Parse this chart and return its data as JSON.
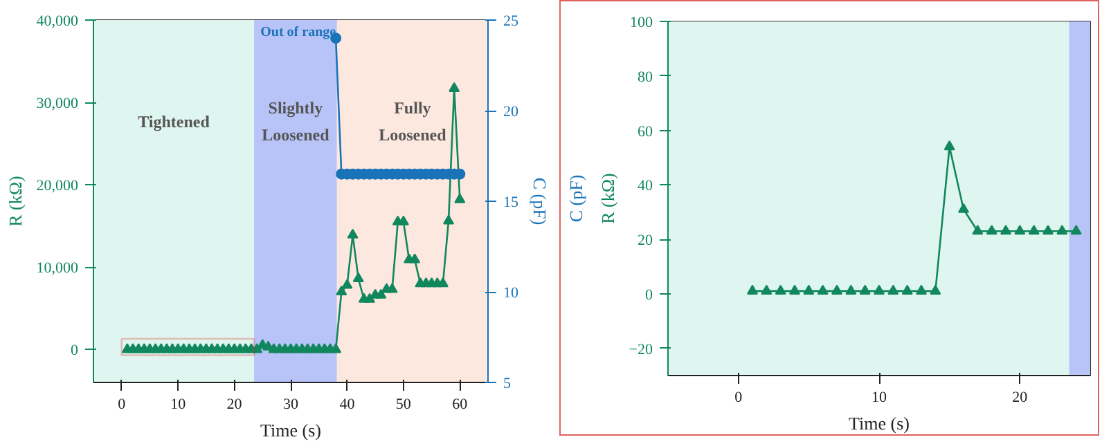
{
  "chart_data": [
    {
      "type": "line",
      "xlabel": "Time (s)",
      "ylabel": "R (kΩ)",
      "y2label": "C (pF)",
      "xlim": [
        -5,
        65
      ],
      "ylim": [
        -4000,
        40000
      ],
      "y2lim": [
        5,
        25
      ],
      "xticks": [
        0,
        10,
        20,
        30,
        40,
        50,
        60
      ],
      "yticks": [
        0,
        {
          "value": 10000,
          "label": "10,000"
        },
        {
          "value": 20000,
          "label": "20,000"
        },
        {
          "value": 30000,
          "label": "30,000"
        },
        {
          "value": 40000,
          "label": "40,000"
        }
      ],
      "y2ticks": [
        5,
        10,
        15,
        20,
        25
      ],
      "bands": [
        {
          "axis": "x",
          "from": -5,
          "to": 23.5,
          "label": "Tightened",
          "color": "#dff5ef"
        },
        {
          "axis": "x",
          "from": 23.5,
          "to": 38.2,
          "label": "Slightly Loosened",
          "color": "#b8c4f8"
        },
        {
          "axis": "x",
          "from": 38.2,
          "to": 65,
          "label": "Fully Loosened",
          "color": "#fde8e0"
        }
      ],
      "annotations": [
        {
          "text": "Out of range",
          "x": 38,
          "y": 38500
        }
      ],
      "grid": false,
      "series": [
        {
          "color": "#11875d",
          "marker": "triangle",
          "x": [
            1,
            2,
            3,
            4,
            5,
            6,
            7,
            8,
            9,
            10,
            11,
            12,
            13,
            14,
            15,
            16,
            17,
            18,
            19,
            20,
            21,
            22,
            23,
            24,
            25,
            26,
            27,
            28,
            29,
            30,
            31,
            32,
            33,
            34,
            35,
            36,
            37,
            38,
            39,
            40,
            41,
            42,
            43,
            44,
            45,
            46,
            47,
            48,
            49,
            50,
            51,
            52,
            53,
            54,
            55,
            56,
            57,
            58,
            59,
            60
          ],
          "values": [
            0,
            0,
            0,
            0,
            0,
            0,
            0,
            0,
            0,
            0,
            0,
            0,
            0,
            0,
            0,
            0,
            0,
            0,
            0,
            0,
            0,
            0,
            0,
            0,
            500,
            300,
            0,
            0,
            0,
            0,
            0,
            0,
            0,
            0,
            0,
            0,
            0,
            0,
            7000,
            7800,
            13900,
            8600,
            6100,
            6100,
            6600,
            6600,
            7300,
            7300,
            15500,
            15500,
            10900,
            10900,
            8000,
            8000,
            8000,
            8000,
            8000,
            15600,
            31700,
            18200
          ]
        },
        {
          "color": "#1a73b8",
          "marker": "circle",
          "axis": "y2",
          "x": [
            38,
            39,
            40,
            41,
            42,
            43,
            44,
            45,
            46,
            47,
            48,
            49,
            50,
            51,
            52,
            53,
            54,
            55,
            56,
            57,
            58,
            59,
            60
          ],
          "values": [
            24,
            16.5,
            16.5,
            16.5,
            16.5,
            16.5,
            16.5,
            16.5,
            16.5,
            16.5,
            16.5,
            16.5,
            16.5,
            16.5,
            16.5,
            16.5,
            16.5,
            16.5,
            16.5,
            16.5,
            16.5,
            16.5,
            16.5
          ]
        }
      ]
    },
    {
      "type": "line",
      "xlabel": "Time (s)",
      "ylabel": "R (kΩ)",
      "y2label": "C (pF)",
      "xlim": [
        -5,
        25
      ],
      "ylim": [
        -30,
        100
      ],
      "xticks": [
        0,
        10,
        20
      ],
      "yticks": [
        -20,
        0,
        20,
        40,
        60,
        80,
        100
      ],
      "bands": [
        {
          "axis": "x",
          "from": -5,
          "to": 23.5,
          "color": "#dff5ef"
        },
        {
          "axis": "x",
          "from": 23.5,
          "to": 25,
          "color": "#b8c4f8"
        }
      ],
      "grid": false,
      "series": [
        {
          "color": "#11875d",
          "marker": "triangle",
          "x": [
            1,
            2,
            3,
            4,
            5,
            6,
            7,
            8,
            9,
            10,
            11,
            12,
            13,
            14,
            15,
            16,
            17,
            18,
            19,
            20,
            21,
            22,
            23,
            24
          ],
          "values": [
            1,
            1,
            1,
            1,
            1,
            1,
            1,
            1,
            1,
            1,
            1,
            1,
            1,
            1,
            54,
            31,
            23,
            23,
            23,
            23,
            23,
            23,
            23,
            23
          ]
        }
      ]
    }
  ]
}
